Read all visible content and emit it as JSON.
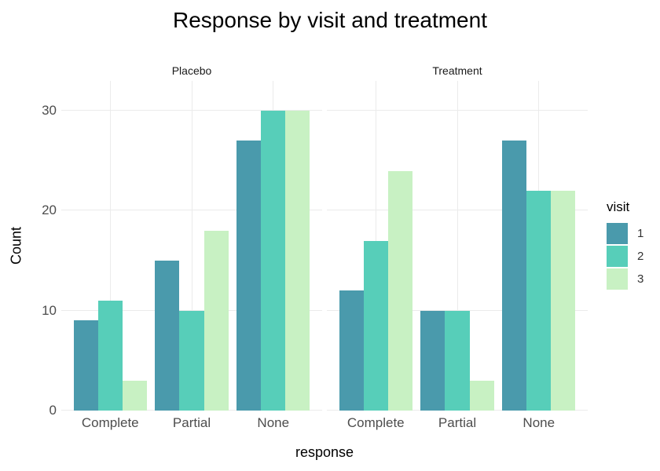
{
  "chart_data": {
    "type": "bar",
    "title": "Response by visit and treatment",
    "xlabel": "response",
    "ylabel": "Count",
    "y_ticks": [
      0,
      10,
      20,
      30
    ],
    "ylim": [
      0,
      33
    ],
    "grid": true,
    "grid_color": "#ebebeb",
    "legend_position": "right",
    "legend": {
      "title": "visit",
      "entries": [
        {
          "label": "1",
          "color": "#4a9aac"
        },
        {
          "label": "2",
          "color": "#57ceb9"
        },
        {
          "label": "3",
          "color": "#c8f1c3"
        }
      ]
    },
    "facets": [
      {
        "label": "Placebo",
        "categories": [
          "Complete",
          "Partial",
          "None"
        ],
        "series": [
          {
            "name": "1",
            "values": [
              9,
              15,
              27
            ]
          },
          {
            "name": "2",
            "values": [
              11,
              10,
              30
            ]
          },
          {
            "name": "3",
            "values": [
              3,
              18,
              30
            ]
          }
        ]
      },
      {
        "label": "Treatment",
        "categories": [
          "Complete",
          "Partial",
          "None"
        ],
        "series": [
          {
            "name": "1",
            "values": [
              12,
              10,
              27
            ]
          },
          {
            "name": "2",
            "values": [
              17,
              10,
              22
            ]
          },
          {
            "name": "3",
            "values": [
              24,
              3,
              22
            ]
          }
        ]
      }
    ]
  }
}
